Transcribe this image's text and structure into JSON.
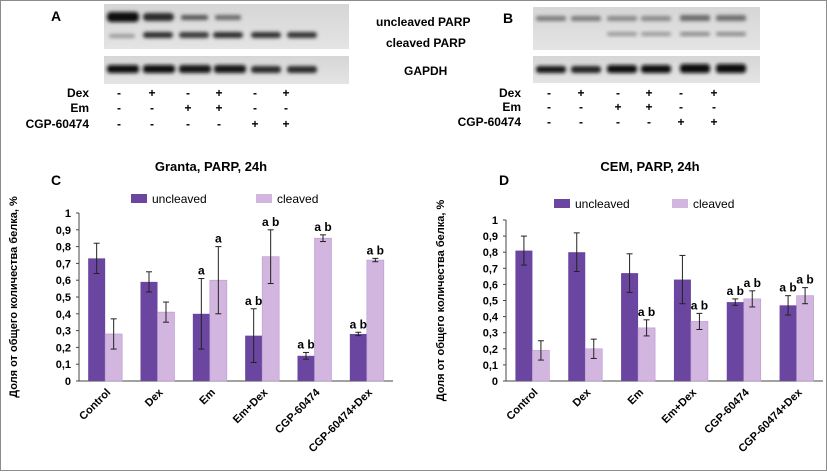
{
  "panel_labels": {
    "a": "A",
    "b": "B",
    "c": "C",
    "d": "D"
  },
  "blot_labels": {
    "uncleaved": "uncleaved PARP",
    "cleaved": "cleaved PARP",
    "gapdh": "GAPDH"
  },
  "treatments": {
    "rows": [
      {
        "label": "Dex",
        "signs": [
          "-",
          "+",
          "-",
          "+",
          "-",
          "+"
        ]
      },
      {
        "label": "Em",
        "signs": [
          "-",
          "-",
          "+",
          "+",
          "-",
          "-"
        ]
      },
      {
        "label": "CGP-60474",
        "signs": [
          "-",
          "-",
          "-",
          "-",
          "+",
          "+"
        ]
      }
    ]
  },
  "colors": {
    "uncleaved": "#6a46a0",
    "cleaved": "#d2b6e0",
    "error_bar": "#222222"
  },
  "chart_data": [
    {
      "panel": "C",
      "type": "bar",
      "title": "Granta, PARP, 24h",
      "ylabel": "Доля от общего количества белка, %",
      "xlabel": "",
      "ylim": [
        0,
        1
      ],
      "yticks": [
        "0",
        "0,1",
        "0,2",
        "0,3",
        "0,4",
        "0,5",
        "0,6",
        "0,7",
        "0,8",
        "0,9",
        "1"
      ],
      "legend": "top",
      "categories": [
        "Control",
        "Dex",
        "Em",
        "Em+Dex",
        "CGP-60474",
        "CGP-60474+Dex"
      ],
      "series": [
        {
          "name": "uncleaved",
          "values": [
            0.73,
            0.59,
            0.4,
            0.27,
            0.15,
            0.28
          ],
          "errors": [
            0.09,
            0.06,
            0.21,
            0.16,
            0.02,
            0.01
          ],
          "annotations": [
            "",
            "",
            "a",
            "a b",
            "a b",
            "a b"
          ]
        },
        {
          "name": "cleaved",
          "values": [
            0.28,
            0.41,
            0.6,
            0.74,
            0.85,
            0.72
          ],
          "errors": [
            0.09,
            0.06,
            0.2,
            0.16,
            0.02,
            0.01
          ],
          "annotations": [
            "",
            "",
            "a",
            "a b",
            "a b",
            "a b"
          ]
        }
      ]
    },
    {
      "panel": "D",
      "type": "bar",
      "title": "CEM, PARP, 24h",
      "ylabel": "Доля от общего количества белка, %",
      "xlabel": "",
      "ylim": [
        0,
        1
      ],
      "yticks": [
        "0",
        "0,1",
        "0,2",
        "0,3",
        "0,4",
        "0,5",
        "0,6",
        "0,7",
        "0,8",
        "0,9",
        "1"
      ],
      "legend": "top",
      "categories": [
        "Control",
        "Dex",
        "Em",
        "Em+Dex",
        "CGP-60474",
        "CGP-60474+Dex"
      ],
      "series": [
        {
          "name": "uncleaved",
          "values": [
            0.81,
            0.8,
            0.67,
            0.63,
            0.49,
            0.47
          ],
          "errors": [
            0.09,
            0.12,
            0.12,
            0.15,
            0.02,
            0.06
          ],
          "annotations": [
            "",
            "",
            "",
            "",
            "a b",
            "a b"
          ]
        },
        {
          "name": "cleaved",
          "values": [
            0.19,
            0.2,
            0.33,
            0.37,
            0.51,
            0.53
          ],
          "errors": [
            0.06,
            0.06,
            0.05,
            0.05,
            0.05,
            0.05
          ],
          "annotations": [
            "",
            "",
            "a b",
            "a b",
            "a b",
            "a b"
          ]
        }
      ]
    }
  ]
}
